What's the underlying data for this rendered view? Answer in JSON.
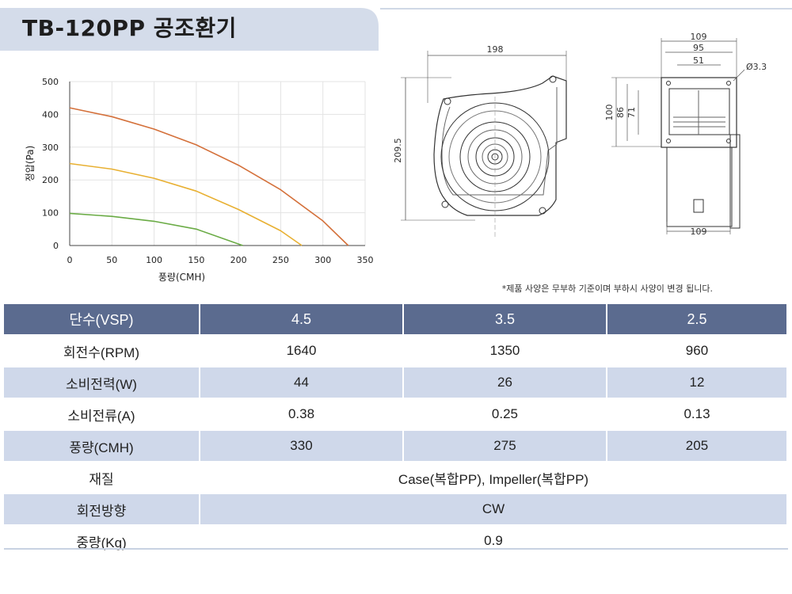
{
  "title": "TB-120PP 공조환기",
  "note": "*제품 사양은 무부하 기준이며 부하시 사양이 변경 됩니다.",
  "chart_data": {
    "type": "line",
    "xlabel": "풍량(CMH)",
    "ylabel": "정압(Pa)",
    "xlim": [
      0,
      350
    ],
    "ylim": [
      0,
      500
    ],
    "xticks": [
      0,
      50,
      100,
      150,
      200,
      250,
      300,
      350
    ],
    "yticks": [
      0,
      100,
      200,
      300,
      400,
      500
    ],
    "grid": true,
    "series": [
      {
        "color": "#d4703a",
        "x": [
          0,
          50,
          100,
          150,
          200,
          250,
          300,
          330
        ],
        "y": [
          420,
          393,
          355,
          307,
          245,
          170,
          75,
          0
        ]
      },
      {
        "color": "#e8b032",
        "x": [
          0,
          50,
          100,
          150,
          200,
          250,
          275
        ],
        "y": [
          250,
          233,
          205,
          166,
          110,
          45,
          0
        ]
      },
      {
        "color": "#6aab45",
        "x": [
          0,
          50,
          100,
          150,
          205
        ],
        "y": [
          98,
          89,
          74,
          50,
          0
        ]
      }
    ]
  },
  "drawing": {
    "front": {
      "width": "198",
      "height": "209.5"
    },
    "side": {
      "w1": "109",
      "w2": "95",
      "w3": "51",
      "hole": "Ø3.3",
      "h1": "100",
      "h2": "86",
      "h3": "71",
      "bottom": "109"
    }
  },
  "table": {
    "headers": [
      "단수(VSP)",
      "4.5",
      "3.5",
      "2.5"
    ],
    "rows": [
      {
        "label": "회전수(RPM)",
        "values": [
          "1640",
          "1350",
          "960"
        ]
      },
      {
        "label": "소비전력(W)",
        "values": [
          "44",
          "26",
          "12"
        ]
      },
      {
        "label": "소비전류(A)",
        "values": [
          "0.38",
          "0.25",
          "0.13"
        ]
      },
      {
        "label": "풍량(CMH)",
        "values": [
          "330",
          "275",
          "205"
        ]
      },
      {
        "label": "재질",
        "span": "Case(복합PP), Impeller(복합PP)"
      },
      {
        "label": "회전방향",
        "span": "CW"
      },
      {
        "label": "중량(Kg)",
        "span": "0.9"
      }
    ]
  }
}
